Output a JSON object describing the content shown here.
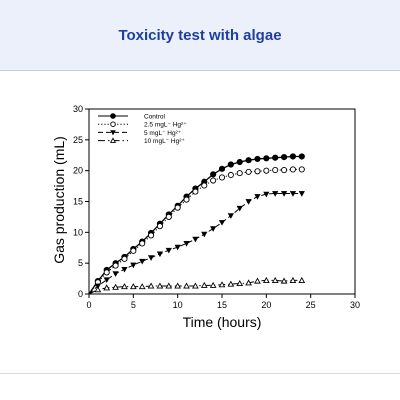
{
  "header": {
    "title": "Toxicity test with algae"
  },
  "chart_data": {
    "type": "line",
    "title": "",
    "xlabel": "Time (hours)",
    "ylabel": "Gas production (mL)",
    "xlim": [
      0,
      30
    ],
    "ylim": [
      0,
      30
    ],
    "xticks": [
      0,
      5,
      10,
      15,
      20,
      25,
      30
    ],
    "yticks": [
      0,
      5,
      10,
      15,
      20,
      25,
      30
    ],
    "grid": false,
    "legend_position": "top-left",
    "series": [
      {
        "name": "Control",
        "marker": "filled-circle",
        "line": "solid",
        "x": [
          0,
          1,
          2,
          3,
          4,
          5,
          6,
          7,
          8,
          9,
          10,
          11,
          12,
          13,
          14,
          15,
          16,
          17,
          18,
          19,
          20,
          21,
          22,
          23,
          24
        ],
        "y": [
          0,
          2.1,
          3.9,
          5.0,
          6.0,
          7.3,
          8.5,
          9.9,
          11.4,
          12.9,
          14.3,
          15.8,
          17.1,
          18.2,
          19.4,
          20.3,
          21.0,
          21.4,
          21.7,
          21.9,
          22.0,
          22.1,
          22.2,
          22.3,
          22.3
        ]
      },
      {
        "name": "2.5 mgL⁻ Hg²⁺",
        "marker": "open-circle",
        "line": "dotted",
        "x": [
          0,
          1,
          2,
          3,
          4,
          5,
          6,
          7,
          8,
          9,
          10,
          11,
          12,
          13,
          14,
          15,
          16,
          17,
          18,
          19,
          20,
          21,
          22,
          23,
          24
        ],
        "y": [
          0,
          1.9,
          3.5,
          4.6,
          5.7,
          7.0,
          8.2,
          9.5,
          11.0,
          12.5,
          14.0,
          15.3,
          16.6,
          17.6,
          18.4,
          18.9,
          19.3,
          19.6,
          19.8,
          19.9,
          20.0,
          20.1,
          20.1,
          20.2,
          20.2
        ]
      },
      {
        "name": "5 mgL⁻ Hg²⁺",
        "marker": "filled-triangle-down",
        "line": "dashed",
        "x": [
          0,
          1,
          2,
          3,
          4,
          5,
          6,
          7,
          8,
          9,
          10,
          11,
          12,
          13,
          14,
          15,
          16,
          17,
          18,
          19,
          20,
          21,
          22,
          23,
          24
        ],
        "y": [
          0,
          1.3,
          2.3,
          3.3,
          4.0,
          4.7,
          5.3,
          5.9,
          6.5,
          7.1,
          7.6,
          8.2,
          8.9,
          9.7,
          10.6,
          11.6,
          12.7,
          13.9,
          15.0,
          15.8,
          16.2,
          16.3,
          16.3,
          16.3,
          16.3
        ]
      },
      {
        "name": "10 mgL⁻ Hg²⁺",
        "marker": "open-triangle-up",
        "line": "dash-dot",
        "x": [
          0,
          1,
          2,
          3,
          4,
          5,
          6,
          7,
          8,
          9,
          10,
          11,
          12,
          13,
          14,
          15,
          16,
          17,
          18,
          19,
          20,
          21,
          22,
          23,
          24
        ],
        "y": [
          0,
          0.7,
          1.0,
          1.1,
          1.2,
          1.2,
          1.2,
          1.3,
          1.3,
          1.3,
          1.3,
          1.3,
          1.3,
          1.4,
          1.4,
          1.5,
          1.6,
          1.7,
          1.8,
          2.1,
          2.2,
          2.2,
          2.1,
          2.2,
          2.2
        ]
      }
    ],
    "colors": {
      "series": "#000000",
      "axis": "#000000",
      "header_bg": "#ecf0fb",
      "header_text": "#1f3f9f"
    }
  }
}
